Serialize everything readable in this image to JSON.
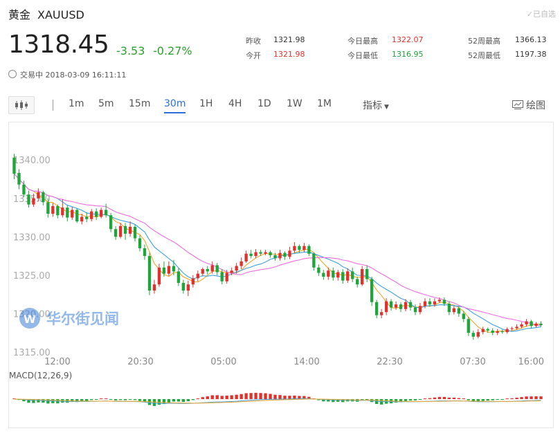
{
  "header": {
    "name": "黄金",
    "symbol": "XAUUSD",
    "watch_label": "✓已自选",
    "price": "1318.45",
    "change": "-3.53",
    "change_pct": "-0.27%",
    "status": "交易中 2018-03-09 16:11:11"
  },
  "stats": {
    "prev_close_label": "昨收",
    "prev_close": "1321.98",
    "open_label": "今开",
    "open": "1321.98",
    "high_label": "今日最高",
    "high": "1322.07",
    "low_label": "今日最低",
    "low": "1316.95",
    "w52_high_label": "52周最高",
    "w52_high": "1366.13",
    "w52_low_label": "52周最低",
    "w52_low": "1197.38"
  },
  "toolbar": {
    "timeframes": [
      "1m",
      "5m",
      "15m",
      "30m",
      "1H",
      "4H",
      "1D",
      "1W",
      "1M"
    ],
    "active": "30m",
    "indicator_label": "指标",
    "draw_label": "绘图"
  },
  "watermark": "华尔街见闻",
  "colors": {
    "up": "#e0312c",
    "down": "#1fa63b",
    "ma_fast": "#f5a623",
    "ma_mid": "#3aa0e0",
    "ma_slow": "#ee6ee0",
    "blue": "#2a6edc"
  },
  "chart_data": {
    "type": "candlestick",
    "title": "",
    "y_ticks": [
      "1340.00",
      "1335.00",
      "1330.00",
      "1325.00",
      "1320.00",
      "1315.00"
    ],
    "ylim": [
      1315,
      1342
    ],
    "x_ticks": [
      "12:00",
      "20:30",
      "05:00",
      "14:00",
      "22:30",
      "07:30",
      "16:00"
    ],
    "macd_label": "MACD(12,26,9)",
    "candles": [
      [
        1340.3,
        1338.2,
        1340.8,
        1337.5
      ],
      [
        1338.3,
        1336.8,
        1338.8,
        1336.2
      ],
      [
        1336.8,
        1335.5,
        1337.3,
        1335.2
      ],
      [
        1335.5,
        1334.2,
        1336.0,
        1333.8
      ],
      [
        1334.2,
        1335.0,
        1335.6,
        1333.9
      ],
      [
        1335.0,
        1335.8,
        1336.3,
        1334.6
      ],
      [
        1335.8,
        1334.5,
        1336.0,
        1334.1
      ],
      [
        1334.5,
        1333.0,
        1335.0,
        1332.5
      ],
      [
        1333.0,
        1334.0,
        1334.4,
        1332.6
      ],
      [
        1334.0,
        1332.8,
        1334.2,
        1332.4
      ],
      [
        1332.8,
        1333.8,
        1334.9,
        1332.5
      ],
      [
        1333.8,
        1332.5,
        1334.1,
        1332.0
      ],
      [
        1332.5,
        1333.5,
        1333.9,
        1332.2
      ],
      [
        1333.5,
        1332.0,
        1333.7,
        1331.8
      ],
      [
        1332.0,
        1332.6,
        1333.0,
        1331.6
      ],
      [
        1332.6,
        1332.3,
        1333.2,
        1331.9
      ],
      [
        1332.3,
        1333.3,
        1333.6,
        1332.0
      ],
      [
        1333.3,
        1332.6,
        1333.7,
        1332.2
      ],
      [
        1332.6,
        1333.5,
        1333.8,
        1332.4
      ],
      [
        1333.5,
        1332.8,
        1334.3,
        1332.5
      ],
      [
        1332.8,
        1331.0,
        1333.1,
        1330.6
      ],
      [
        1331.0,
        1330.0,
        1331.4,
        1329.6
      ],
      [
        1330.0,
        1331.4,
        1331.8,
        1329.8
      ],
      [
        1331.4,
        1330.4,
        1331.8,
        1329.6
      ],
      [
        1330.4,
        1331.3,
        1332.0,
        1330.0
      ],
      [
        1331.3,
        1329.8,
        1331.6,
        1329.4
      ],
      [
        1329.8,
        1328.5,
        1330.2,
        1328.1
      ],
      [
        1328.5,
        1327.5,
        1329.0,
        1327.0
      ],
      [
        1327.5,
        1323.0,
        1327.9,
        1322.4
      ],
      [
        1323.0,
        1323.8,
        1324.4,
        1322.6
      ],
      [
        1323.8,
        1326.0,
        1326.5,
        1323.5
      ],
      [
        1326.0,
        1325.2,
        1326.8,
        1324.8
      ],
      [
        1325.2,
        1326.2,
        1326.8,
        1324.9
      ],
      [
        1326.2,
        1325.5,
        1327.0,
        1325.0
      ],
      [
        1325.5,
        1324.0,
        1325.9,
        1323.6
      ],
      [
        1324.0,
        1323.0,
        1324.4,
        1322.6
      ],
      [
        1323.0,
        1323.8,
        1324.3,
        1322.3
      ],
      [
        1323.8,
        1324.6,
        1325.0,
        1323.4
      ],
      [
        1324.6,
        1325.2,
        1325.6,
        1324.2
      ],
      [
        1325.2,
        1325.8,
        1326.0,
        1324.9
      ],
      [
        1325.8,
        1325.5,
        1326.2,
        1325.1
      ],
      [
        1325.5,
        1326.3,
        1326.8,
        1325.2
      ],
      [
        1326.3,
        1325.4,
        1326.6,
        1325.0
      ],
      [
        1325.4,
        1324.2,
        1325.8,
        1323.8
      ],
      [
        1324.2,
        1325.3,
        1325.7,
        1323.9
      ],
      [
        1325.3,
        1325.6,
        1326.0,
        1325.0
      ],
      [
        1325.6,
        1326.2,
        1326.6,
        1325.2
      ],
      [
        1326.2,
        1326.8,
        1327.3,
        1325.8
      ],
      [
        1326.8,
        1327.8,
        1328.2,
        1326.6
      ],
      [
        1327.8,
        1327.5,
        1328.3,
        1327.2
      ],
      [
        1327.5,
        1328.0,
        1328.4,
        1327.2
      ],
      [
        1328.0,
        1327.8,
        1328.3,
        1327.5
      ],
      [
        1327.8,
        1328.0,
        1328.3,
        1327.6
      ],
      [
        1328.0,
        1327.6,
        1328.2,
        1327.3
      ],
      [
        1327.6,
        1327.2,
        1327.9,
        1326.9
      ],
      [
        1327.2,
        1327.9,
        1328.3,
        1326.9
      ],
      [
        1327.9,
        1327.4,
        1328.1,
        1327.0
      ],
      [
        1327.4,
        1328.2,
        1328.7,
        1327.1
      ],
      [
        1328.2,
        1328.8,
        1329.3,
        1327.9
      ],
      [
        1328.8,
        1328.3,
        1329.0,
        1327.9
      ],
      [
        1328.3,
        1328.8,
        1329.2,
        1328.0
      ],
      [
        1328.8,
        1327.8,
        1329.0,
        1327.5
      ],
      [
        1327.8,
        1326.0,
        1328.0,
        1325.6
      ],
      [
        1326.0,
        1325.3,
        1326.4,
        1324.9
      ],
      [
        1325.3,
        1324.8,
        1325.7,
        1324.4
      ],
      [
        1324.8,
        1325.6,
        1326.0,
        1324.4
      ],
      [
        1325.6,
        1324.7,
        1326.0,
        1324.3
      ],
      [
        1324.7,
        1325.4,
        1325.7,
        1324.3
      ],
      [
        1325.4,
        1324.3,
        1325.8,
        1323.9
      ],
      [
        1324.3,
        1325.5,
        1325.9,
        1324.0
      ],
      [
        1325.5,
        1324.5,
        1326.0,
        1324.1
      ],
      [
        1324.5,
        1323.8,
        1324.8,
        1323.4
      ],
      [
        1323.8,
        1325.8,
        1326.2,
        1323.6
      ],
      [
        1325.8,
        1324.5,
        1326.3,
        1324.1
      ],
      [
        1324.5,
        1321.5,
        1324.8,
        1321.0
      ],
      [
        1321.5,
        1319.8,
        1321.8,
        1319.4
      ],
      [
        1319.8,
        1320.2,
        1320.6,
        1319.4
      ],
      [
        1320.2,
        1321.6,
        1322.0,
        1319.8
      ],
      [
        1321.6,
        1320.8,
        1321.9,
        1320.4
      ],
      [
        1320.8,
        1321.2,
        1321.6,
        1320.5
      ],
      [
        1321.2,
        1320.6,
        1321.5,
        1320.2
      ],
      [
        1320.6,
        1321.5,
        1321.9,
        1320.3
      ],
      [
        1321.5,
        1320.8,
        1321.8,
        1320.4
      ],
      [
        1320.8,
        1320.2,
        1321.2,
        1319.8
      ],
      [
        1320.2,
        1321.0,
        1321.4,
        1319.9
      ],
      [
        1321.0,
        1321.6,
        1322.0,
        1320.7
      ],
      [
        1321.6,
        1321.2,
        1322.0,
        1320.9
      ],
      [
        1321.2,
        1321.6,
        1322.0,
        1320.9
      ],
      [
        1321.6,
        1321.8,
        1322.1,
        1321.4
      ],
      [
        1321.8,
        1321.3,
        1322.1,
        1321.0
      ],
      [
        1321.3,
        1320.2,
        1321.6,
        1319.8
      ],
      [
        1320.2,
        1320.7,
        1321.0,
        1319.9
      ],
      [
        1320.7,
        1320.0,
        1321.0,
        1319.6
      ],
      [
        1320.0,
        1319.3,
        1320.3,
        1318.9
      ],
      [
        1319.3,
        1317.5,
        1319.6,
        1317.1
      ],
      [
        1317.5,
        1317.0,
        1317.8,
        1316.6
      ],
      [
        1317.0,
        1317.6,
        1318.0,
        1316.8
      ],
      [
        1317.6,
        1318.0,
        1318.3,
        1317.3
      ],
      [
        1318.0,
        1317.8,
        1318.2,
        1317.5
      ],
      [
        1317.8,
        1317.5,
        1318.1,
        1317.2
      ],
      [
        1317.5,
        1317.7,
        1318.0,
        1317.2
      ],
      [
        1317.7,
        1317.6,
        1317.9,
        1317.4
      ],
      [
        1317.6,
        1318.0,
        1318.2,
        1317.4
      ],
      [
        1318.0,
        1318.1,
        1318.3,
        1317.8
      ],
      [
        1318.1,
        1318.3,
        1318.6,
        1317.9
      ],
      [
        1318.3,
        1318.6,
        1318.9,
        1318.1
      ],
      [
        1318.6,
        1319.0,
        1319.3,
        1318.3
      ],
      [
        1319.0,
        1318.4,
        1319.2,
        1318.1
      ],
      [
        1318.4,
        1318.7,
        1318.9,
        1318.2
      ],
      [
        1318.7,
        1318.5,
        1319.0,
        1318.3
      ]
    ]
  }
}
